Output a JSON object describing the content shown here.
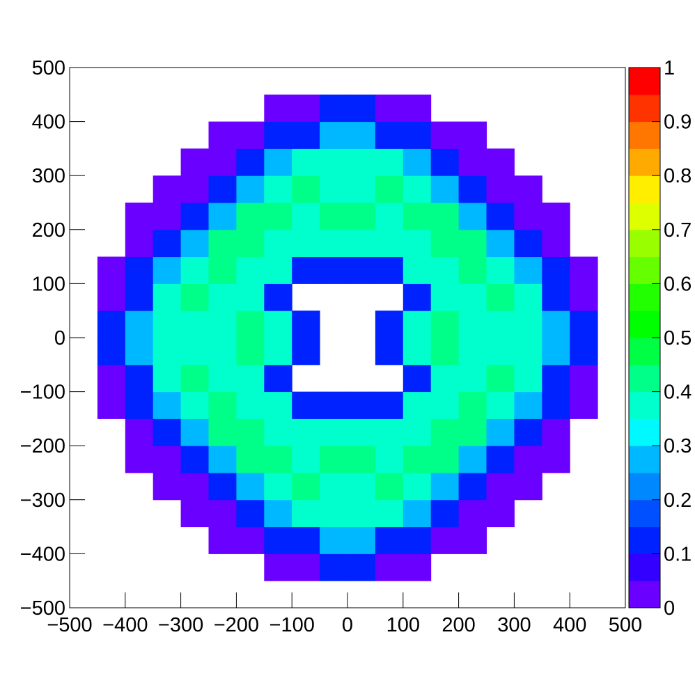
{
  "chart_data": {
    "type": "heatmap",
    "x_edges": [
      -500,
      -450,
      -400,
      -350,
      -300,
      -250,
      -200,
      -150,
      -100,
      -50,
      0,
      50,
      100,
      150,
      200,
      250,
      300,
      350,
      400,
      450,
      500
    ],
    "y_edges": [
      -500,
      -450,
      -400,
      -350,
      -300,
      -250,
      -200,
      -150,
      -100,
      -50,
      0,
      50,
      100,
      150,
      200,
      250,
      300,
      350,
      400,
      450,
      500
    ],
    "z": [
      [
        null,
        null,
        null,
        null,
        null,
        null,
        null,
        null,
        null,
        null,
        null,
        null,
        null,
        null,
        null,
        null,
        null,
        null,
        null,
        null
      ],
      [
        null,
        null,
        null,
        null,
        null,
        null,
        null,
        0.03,
        0.03,
        0.1,
        0.1,
        0.03,
        0.03,
        null,
        null,
        null,
        null,
        null,
        null,
        null
      ],
      [
        null,
        null,
        null,
        null,
        null,
        0.03,
        0.03,
        0.1,
        0.1,
        0.25,
        0.25,
        0.1,
        0.1,
        0.03,
        0.03,
        null,
        null,
        null,
        null,
        null
      ],
      [
        null,
        null,
        null,
        null,
        0.03,
        0.03,
        0.1,
        0.25,
        0.38,
        0.38,
        0.38,
        0.38,
        0.25,
        0.1,
        0.03,
        0.03,
        null,
        null,
        null,
        null
      ],
      [
        null,
        null,
        null,
        0.03,
        0.03,
        0.1,
        0.25,
        0.38,
        0.41,
        0.38,
        0.38,
        0.41,
        0.38,
        0.25,
        0.1,
        0.03,
        0.03,
        null,
        null,
        null
      ],
      [
        null,
        null,
        0.03,
        0.03,
        0.1,
        0.25,
        0.41,
        0.41,
        0.38,
        0.41,
        0.41,
        0.38,
        0.41,
        0.41,
        0.25,
        0.1,
        0.03,
        0.03,
        null,
        null
      ],
      [
        null,
        null,
        0.03,
        0.1,
        0.25,
        0.41,
        0.41,
        0.38,
        0.38,
        0.38,
        0.38,
        0.38,
        0.38,
        0.41,
        0.41,
        0.25,
        0.1,
        0.03,
        null,
        null
      ],
      [
        null,
        0.03,
        0.1,
        0.25,
        0.38,
        0.41,
        0.38,
        0.38,
        0.12,
        0.12,
        0.12,
        0.12,
        0.38,
        0.38,
        0.41,
        0.38,
        0.25,
        0.1,
        0.03,
        null
      ],
      [
        null,
        0.03,
        0.1,
        0.38,
        0.41,
        0.38,
        0.38,
        0.12,
        null,
        null,
        null,
        null,
        0.12,
        0.38,
        0.38,
        0.41,
        0.38,
        0.1,
        0.03,
        null
      ],
      [
        null,
        0.1,
        0.25,
        0.38,
        0.38,
        0.38,
        0.41,
        0.38,
        0.12,
        null,
        null,
        0.12,
        0.38,
        0.41,
        0.38,
        0.38,
        0.38,
        0.25,
        0.1,
        null
      ],
      [
        null,
        0.1,
        0.25,
        0.38,
        0.38,
        0.38,
        0.41,
        0.38,
        0.12,
        null,
        null,
        0.12,
        0.38,
        0.41,
        0.38,
        0.38,
        0.38,
        0.25,
        0.1,
        null
      ],
      [
        null,
        0.03,
        0.1,
        0.38,
        0.41,
        0.38,
        0.38,
        0.12,
        null,
        null,
        null,
        null,
        0.12,
        0.38,
        0.38,
        0.41,
        0.38,
        0.1,
        0.03,
        null
      ],
      [
        null,
        0.03,
        0.1,
        0.25,
        0.38,
        0.41,
        0.38,
        0.38,
        0.12,
        0.12,
        0.12,
        0.12,
        0.38,
        0.38,
        0.41,
        0.38,
        0.25,
        0.1,
        0.03,
        null
      ],
      [
        null,
        null,
        0.03,
        0.1,
        0.25,
        0.41,
        0.41,
        0.38,
        0.38,
        0.38,
        0.38,
        0.38,
        0.38,
        0.41,
        0.41,
        0.25,
        0.1,
        0.03,
        null,
        null
      ],
      [
        null,
        null,
        0.03,
        0.03,
        0.1,
        0.25,
        0.41,
        0.41,
        0.38,
        0.41,
        0.41,
        0.38,
        0.41,
        0.41,
        0.25,
        0.1,
        0.03,
        0.03,
        null,
        null
      ],
      [
        null,
        null,
        null,
        0.03,
        0.03,
        0.1,
        0.25,
        0.38,
        0.41,
        0.38,
        0.38,
        0.41,
        0.38,
        0.25,
        0.1,
        0.03,
        0.03,
        null,
        null,
        null
      ],
      [
        null,
        null,
        null,
        null,
        0.03,
        0.03,
        0.1,
        0.25,
        0.38,
        0.38,
        0.38,
        0.38,
        0.25,
        0.1,
        0.03,
        0.03,
        null,
        null,
        null,
        null
      ],
      [
        null,
        null,
        null,
        null,
        null,
        0.03,
        0.03,
        0.1,
        0.1,
        0.25,
        0.25,
        0.1,
        0.1,
        0.03,
        0.03,
        null,
        null,
        null,
        null,
        null
      ],
      [
        null,
        null,
        null,
        null,
        null,
        null,
        null,
        0.03,
        0.03,
        0.1,
        0.1,
        0.03,
        0.03,
        null,
        null,
        null,
        null,
        null,
        null,
        null
      ],
      [
        null,
        null,
        null,
        null,
        null,
        null,
        null,
        null,
        null,
        null,
        null,
        null,
        null,
        null,
        null,
        null,
        null,
        null,
        null,
        null
      ]
    ],
    "xlim": [
      -500,
      500
    ],
    "ylim": [
      -500,
      500
    ],
    "zlim": [
      0,
      1
    ],
    "xticks": [
      {
        "value": -500,
        "label": "−500"
      },
      {
        "value": -400,
        "label": "−400"
      },
      {
        "value": -300,
        "label": "−300"
      },
      {
        "value": -200,
        "label": "−200"
      },
      {
        "value": -100,
        "label": "−100"
      },
      0,
      100,
      200,
      300,
      400,
      500
    ],
    "yticks": [
      {
        "value": -500,
        "label": "−500"
      },
      {
        "value": -400,
        "label": "−400"
      },
      {
        "value": -300,
        "label": "−300"
      },
      {
        "value": -200,
        "label": "−200"
      },
      {
        "value": -100,
        "label": "−100"
      },
      0,
      100,
      200,
      300,
      400,
      500
    ],
    "zticks": [
      0,
      0.1,
      0.2,
      0.3,
      0.4,
      0.5,
      0.6,
      0.7,
      0.8,
      0.9,
      1
    ],
    "colors": [
      "#6a00ff",
      "#3300ff",
      "#0022ff",
      "#0050ff",
      "#0088ff",
      "#00b8ff",
      "#00f8ff",
      "#00ffcc",
      "#00ff88",
      "#00ff44",
      "#00ff00",
      "#22ff00",
      "#66ff00",
      "#99ff00",
      "#ddff00",
      "#ffee00",
      "#ffaa00",
      "#ff7700",
      "#ff3300",
      "#ff0000"
    ]
  }
}
